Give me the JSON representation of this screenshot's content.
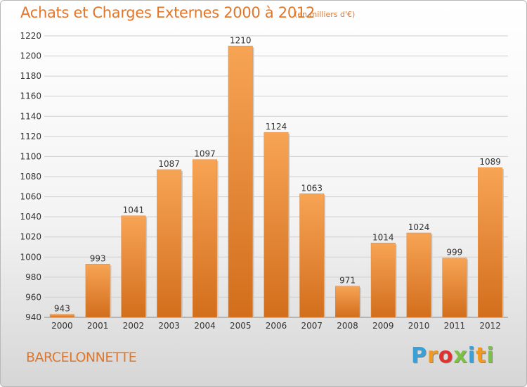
{
  "header": {
    "title": "Achats et Charges Externes 2000 à 2012",
    "subtitle": "(en milliers d'€)"
  },
  "footer": {
    "commune": "BARCELONNETTE",
    "logo_letters": [
      "P",
      "r",
      "o",
      "x",
      "i",
      "t",
      "i"
    ],
    "logo_colors": [
      "#3aa0d8",
      "#f29a1f",
      "#e2302f",
      "#7cc242",
      "#3aa0d8",
      "#f29a1f",
      "#7cc242"
    ]
  },
  "colors": {
    "bar_light": "#f7a455",
    "bar_dark": "#d26e1c",
    "accent": "#e0772c"
  },
  "chart_data": {
    "type": "bar",
    "title": "Achats et Charges Externes 2000 à 2012",
    "subtitle": "(en milliers d'€)",
    "xlabel": "",
    "ylabel": "",
    "categories": [
      "2000",
      "2001",
      "2002",
      "2003",
      "2004",
      "2005",
      "2006",
      "2007",
      "2008",
      "2009",
      "2010",
      "2011",
      "2012"
    ],
    "values": [
      943,
      993,
      1041,
      1087,
      1097,
      1210,
      1124,
      1063,
      971,
      1014,
      1024,
      999,
      1089
    ],
    "ylim": [
      940,
      1220
    ],
    "yticks": [
      940,
      960,
      980,
      1000,
      1020,
      1040,
      1060,
      1080,
      1100,
      1120,
      1140,
      1160,
      1180,
      1200,
      1220
    ],
    "grid": true,
    "legend": "none"
  }
}
